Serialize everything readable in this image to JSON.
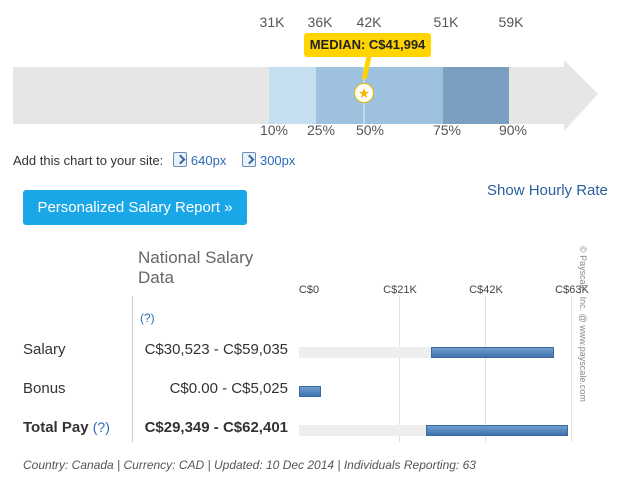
{
  "percentile_chart": {
    "top_ticks": [
      "31K",
      "36K",
      "42K",
      "51K",
      "59K"
    ],
    "bottom_ticks": [
      "10%",
      "25%",
      "50%",
      "75%",
      "90%"
    ],
    "median_label": "MEDIAN: C$41,994",
    "band_colors": [
      "#c5dff0",
      "#9dc1de",
      "#799fc1"
    ],
    "arrow_color": "#e6e6e6",
    "median_icon": "star-icon"
  },
  "embed": {
    "prompt": "Add this chart to your site:",
    "options": [
      "640px",
      "300px"
    ],
    "icon": "embed-icon"
  },
  "actions": {
    "report_button": "Personalized Salary Report »",
    "hourly_link": "Show Hourly Rate"
  },
  "table": {
    "title": "National Salary Data",
    "help": "(?)",
    "axis_labels": [
      "C$0",
      "C$21K",
      "C$42K",
      "C$63K"
    ],
    "rows": [
      {
        "label": "Salary",
        "range": "C$30,523 - C$59,035",
        "bold": false
      },
      {
        "label": "Bonus",
        "range": "C$0.00 - C$5,025",
        "bold": false
      },
      {
        "label": "Total Pay",
        "help": "(?)",
        "range": "C$29,349 - C$62,401",
        "bold": true
      }
    ]
  },
  "chart_data": {
    "type": "bar",
    "axis_max": 63000,
    "categories": [
      "Salary",
      "Bonus",
      "Total Pay"
    ],
    "ranges": [
      [
        30523,
        59035
      ],
      [
        0,
        5025
      ],
      [
        29349,
        62401
      ]
    ]
  },
  "footer": "Country: Canada | Currency: CAD | Updated: 10 Dec 2014 | Individuals Reporting: 63",
  "copyright": "© Payscale, Inc. @ www.payscale.com"
}
